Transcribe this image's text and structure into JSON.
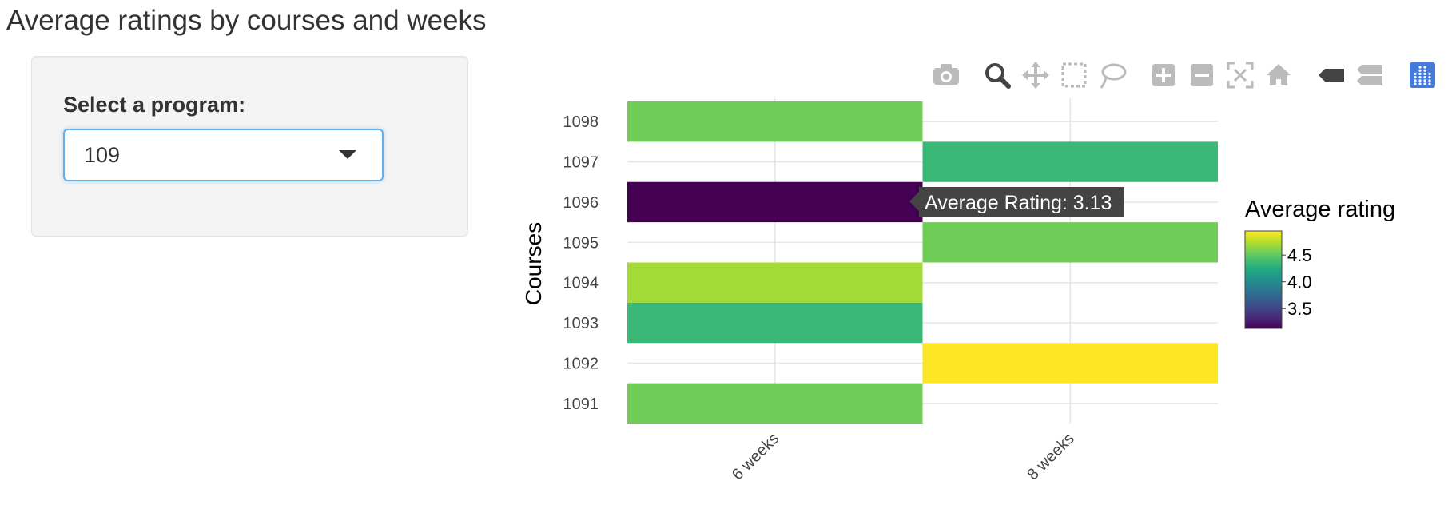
{
  "page": {
    "title": "Average ratings by courses and weeks"
  },
  "sidebar": {
    "select_label": "Select a program:",
    "select_value": "109"
  },
  "modebar": {
    "buttons": [
      {
        "name": "camera-icon"
      },
      {
        "name": "zoom-icon"
      },
      {
        "name": "pan-icon"
      },
      {
        "name": "box-select-icon"
      },
      {
        "name": "lasso-select-icon"
      },
      {
        "name": "zoom-in-icon"
      },
      {
        "name": "zoom-out-icon"
      },
      {
        "name": "autoscale-icon"
      },
      {
        "name": "reset-axes-icon"
      },
      {
        "name": "hover-closest-icon"
      },
      {
        "name": "hover-compare-icon"
      },
      {
        "name": "plotly-logo-icon"
      }
    ],
    "icon_color": "#bbbbbb",
    "active_color": "#444444",
    "logo_color": "#447adb"
  },
  "tooltip": {
    "text": "Average Rating: 3.13",
    "background": "#444444"
  },
  "chart_data": {
    "type": "heatmap",
    "title": "",
    "xlabel": "",
    "ylabel": "Courses",
    "x_categories": [
      "6 weeks",
      "8 weeks"
    ],
    "y_categories": [
      "1091",
      "1092",
      "1093",
      "1094",
      "1095",
      "1096",
      "1097",
      "1098"
    ],
    "cells": [
      {
        "x": "6 weeks",
        "y": "1098",
        "value": 4.55
      },
      {
        "x": "8 weeks",
        "y": "1097",
        "value": 4.35
      },
      {
        "x": "6 weeks",
        "y": "1096",
        "value": 3.13
      },
      {
        "x": "8 weeks",
        "y": "1095",
        "value": 4.55
      },
      {
        "x": "6 weeks",
        "y": "1094",
        "value": 4.7
      },
      {
        "x": "6 weeks",
        "y": "1093",
        "value": 4.35
      },
      {
        "x": "8 weeks",
        "y": "1092",
        "value": 4.95
      },
      {
        "x": "6 weeks",
        "y": "1091",
        "value": 4.55
      }
    ],
    "colorbar": {
      "title": "Average rating",
      "ticks": [
        "3.5",
        "4.0",
        "4.5"
      ],
      "colorscale": "viridis",
      "range": [
        3.13,
        4.95
      ]
    },
    "grid": true
  }
}
